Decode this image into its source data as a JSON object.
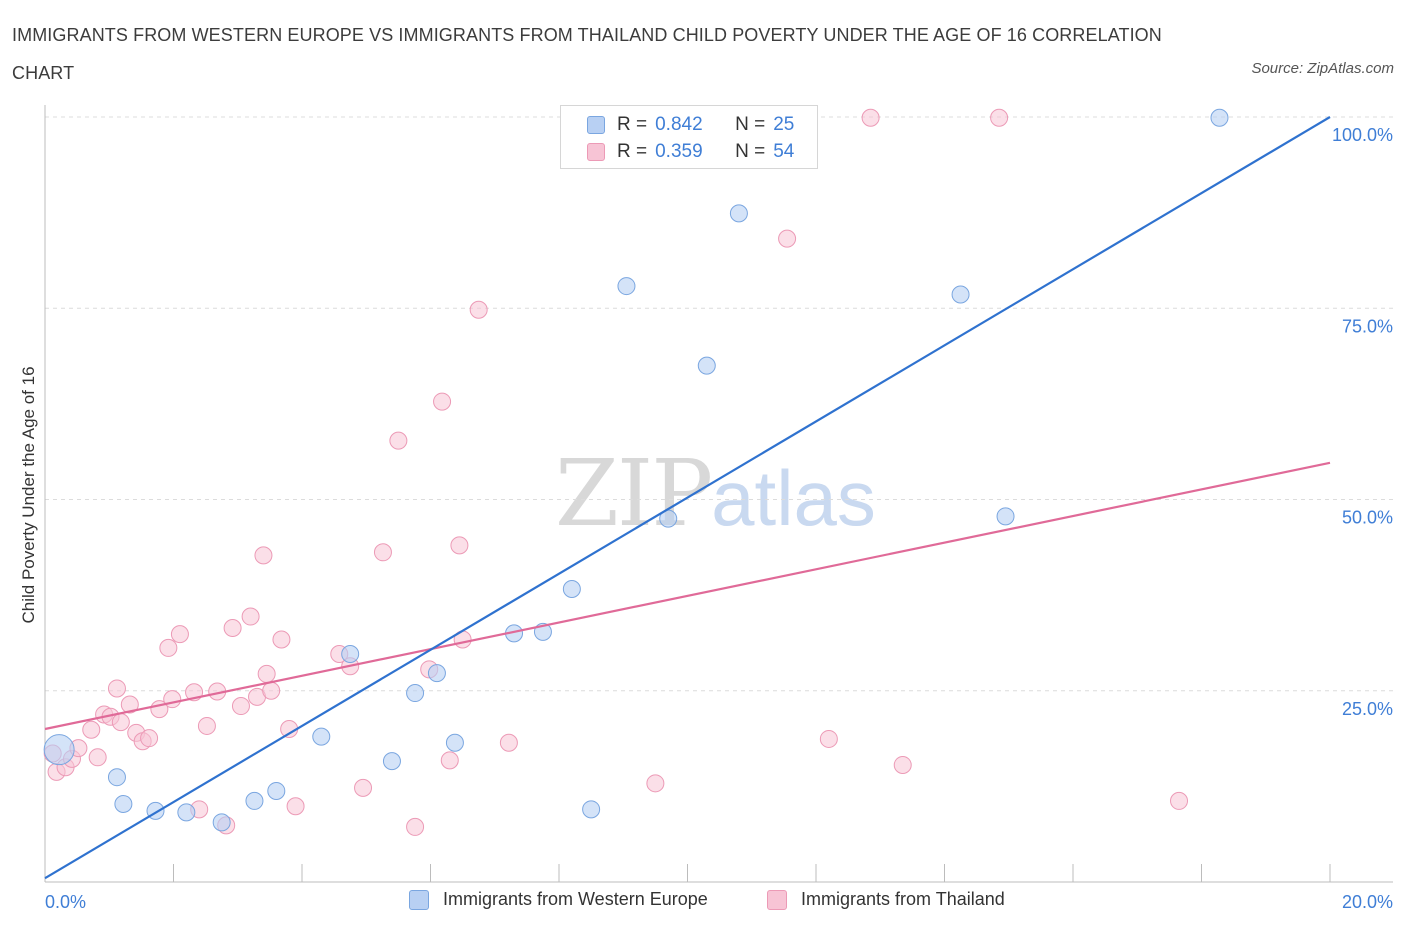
{
  "header": {
    "title": "IMMIGRANTS FROM WESTERN EUROPE VS IMMIGRANTS FROM THAILAND CHILD POVERTY UNDER THE AGE OF 16 CORRELATION CHART",
    "source": "Source: ZipAtlas.com"
  },
  "watermark": {
    "zip": "ZIP",
    "atlas": "atlas"
  },
  "legend": {
    "rows": [
      {
        "r_label": "R =",
        "r_value": "0.842",
        "n_label": "N =",
        "n_value": "25"
      },
      {
        "r_label": "R =",
        "r_value": "0.359",
        "n_label": "N =",
        "n_value": "54"
      }
    ]
  },
  "bottom_legend": {
    "series1": "Immigrants from Western Europe",
    "series2": "Immigrants from Thailand"
  },
  "chart_data": {
    "type": "scatter",
    "title": "IMMIGRANTS FROM WESTERN EUROPE VS IMMIGRANTS FROM THAILAND CHILD POVERTY UNDER THE AGE OF 16 CORRELATION CHART",
    "xlabel": "",
    "ylabel": "Child Poverty Under the Age of 16",
    "xlim": [
      0,
      20
    ],
    "ylim": [
      0,
      100
    ],
    "x_tick_labels": [
      "0.0%",
      "20.0%"
    ],
    "y_ticks": [
      25,
      50,
      75,
      100
    ],
    "y_tick_labels": [
      "25.0%",
      "50.0%",
      "75.0%",
      "100.0%"
    ],
    "colors": {
      "series1_fill": "#b8d0f3",
      "series1_stroke": "#7aa6e0",
      "series1_line": "#2f72cf",
      "series2_fill": "#f7c4d5",
      "series2_stroke": "#ec9ab6",
      "series2_line": "#e06a98",
      "grid": "#dcdcdc",
      "axis_label": "#3f7ed6"
    },
    "series": [
      {
        "name": "Immigrants from Western Europe",
        "R": 0.842,
        "N": 25,
        "trend": [
          [
            0,
            0.5
          ],
          [
            20,
            100
          ]
        ],
        "points": [
          [
            0.22,
            17.3
          ],
          [
            1.12,
            13.7
          ],
          [
            1.22,
            10.2
          ],
          [
            1.72,
            9.3
          ],
          [
            2.2,
            9.1
          ],
          [
            2.75,
            7.8
          ],
          [
            3.26,
            10.6
          ],
          [
            3.6,
            11.9
          ],
          [
            4.3,
            19
          ],
          [
            4.75,
            29.8
          ],
          [
            5.4,
            15.8
          ],
          [
            5.76,
            24.7
          ],
          [
            6.1,
            27.3
          ],
          [
            6.38,
            18.2
          ],
          [
            7.3,
            32.5
          ],
          [
            7.75,
            32.7
          ],
          [
            8.2,
            38.3
          ],
          [
            8.5,
            9.5
          ],
          [
            9.05,
            77.9
          ],
          [
            9.7,
            47.5
          ],
          [
            10.3,
            67.5
          ],
          [
            10.8,
            87.4
          ],
          [
            14.25,
            76.8
          ],
          [
            14.95,
            47.8
          ],
          [
            18.28,
            99.9
          ]
        ]
      },
      {
        "name": "Immigrants from Thailand",
        "R": 0.359,
        "N": 54,
        "trend": [
          [
            0,
            20
          ],
          [
            20,
            54.8
          ]
        ],
        "points": [
          [
            0.12,
            16.8
          ],
          [
            0.18,
            14.4
          ],
          [
            0.32,
            15.0
          ],
          [
            0.42,
            16.1
          ],
          [
            0.52,
            17.5
          ],
          [
            0.72,
            19.9
          ],
          [
            0.82,
            16.3
          ],
          [
            0.92,
            21.9
          ],
          [
            1.02,
            21.6
          ],
          [
            1.12,
            25.3
          ],
          [
            1.18,
            20.9
          ],
          [
            1.32,
            23.2
          ],
          [
            1.42,
            19.5
          ],
          [
            1.52,
            18.4
          ],
          [
            1.62,
            18.8
          ],
          [
            1.78,
            22.6
          ],
          [
            1.92,
            30.6
          ],
          [
            1.98,
            23.9
          ],
          [
            2.1,
            32.4
          ],
          [
            2.32,
            24.8
          ],
          [
            2.4,
            9.5
          ],
          [
            2.52,
            20.4
          ],
          [
            2.68,
            24.9
          ],
          [
            2.82,
            7.4
          ],
          [
            2.92,
            33.2
          ],
          [
            3.05,
            23.0
          ],
          [
            3.2,
            34.7
          ],
          [
            3.3,
            24.2
          ],
          [
            3.4,
            42.7
          ],
          [
            3.45,
            27.2
          ],
          [
            3.52,
            25.0
          ],
          [
            3.68,
            31.7
          ],
          [
            3.8,
            20.0
          ],
          [
            3.9,
            9.9
          ],
          [
            4.58,
            29.8
          ],
          [
            4.75,
            28.2
          ],
          [
            4.95,
            12.3
          ],
          [
            5.26,
            43.1
          ],
          [
            5.5,
            57.7
          ],
          [
            5.76,
            7.2
          ],
          [
            5.98,
            27.8
          ],
          [
            6.18,
            62.8
          ],
          [
            6.3,
            15.9
          ],
          [
            6.45,
            44.0
          ],
          [
            6.5,
            31.7
          ],
          [
            6.75,
            74.8
          ],
          [
            7.22,
            18.2
          ],
          [
            9.5,
            12.9
          ],
          [
            11.55,
            84.1
          ],
          [
            12.2,
            18.7
          ],
          [
            12.85,
            99.9
          ],
          [
            13.35,
            15.3
          ],
          [
            14.85,
            99.9
          ],
          [
            17.65,
            10.6
          ]
        ]
      }
    ]
  }
}
